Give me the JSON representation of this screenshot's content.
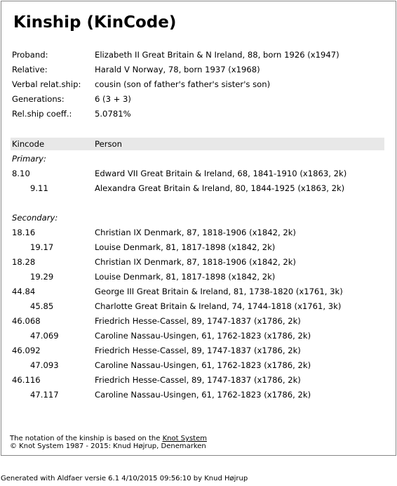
{
  "header": {
    "title": "Kinship (KinCode)"
  },
  "details": [
    {
      "label": "Proband:",
      "value": "Elizabeth II Great Britain & N Ireland, 88, born 1926 (x1947)"
    },
    {
      "label": "Relative:",
      "value": "Harald V Norway, 78, born 1937 (x1968)"
    },
    {
      "label": "Verbal relat.ship:",
      "value": "cousin (son of father's father's sister's son)"
    },
    {
      "label": "Generations:",
      "value": "6 (3 + 3)"
    },
    {
      "label": "Rel.ship coeff.:",
      "value": "5.0781%"
    }
  ],
  "table": {
    "columns": [
      "Kincode",
      "Person"
    ],
    "sections": [
      {
        "title": "Primary:",
        "rows": [
          [
            "8.10",
            "Edward VII Great Britain & Ireland, 68, 1841-1910 (x1863, 2k)"
          ],
          [
            "9.11",
            "Alexandra Great Britain & Ireland, 80, 1844-1925 (x1863, 2k)"
          ]
        ]
      },
      {
        "title": "Secondary:",
        "rows": [
          [
            "18.16",
            "Christian IX Denmark, 87, 1818-1906 (x1842, 2k)"
          ],
          [
            "19.17",
            "Louise Denmark, 81, 1817-1898 (x1842, 2k)"
          ],
          [
            "18.28",
            "Christian IX Denmark, 87, 1818-1906 (x1842, 2k)"
          ],
          [
            "19.29",
            "Louise Denmark, 81, 1817-1898 (x1842, 2k)"
          ],
          [
            "44.84",
            "George III Great Britain & Ireland, 81, 1738-1820 (x1761, 3k)"
          ],
          [
            "45.85",
            "Charlotte Great Britain & Ireland, 74, 1744-1818 (x1761, 3k)"
          ],
          [
            "46.068",
            "Friedrich Hesse-Cassel, 89, 1747-1837 (x1786, 2k)"
          ],
          [
            "47.069",
            "Caroline Nassau-Usingen, 61, 1762-1823 (x1786, 2k)"
          ],
          [
            "46.092",
            "Friedrich Hesse-Cassel, 89, 1747-1837 (x1786, 2k)"
          ],
          [
            "47.093",
            "Caroline Nassau-Usingen, 61, 1762-1823 (x1786, 2k)"
          ],
          [
            "46.116",
            "Friedrich Hesse-Cassel, 89, 1747-1837 (x1786, 2k)"
          ],
          [
            "47.117",
            "Caroline Nassau-Usingen, 61, 1762-1823 (x1786, 2k)"
          ]
        ]
      }
    ]
  },
  "footer": {
    "note": "The notation of the kinship is based on the",
    "link": "Knot System",
    "copyright": "© Knot System 1987 - 2015: Knud Højrup, Denemarken"
  },
  "generated": "Generated with Aldfaer versie 6.1 4/10/2015 09:56:10 by Knud Højrup"
}
